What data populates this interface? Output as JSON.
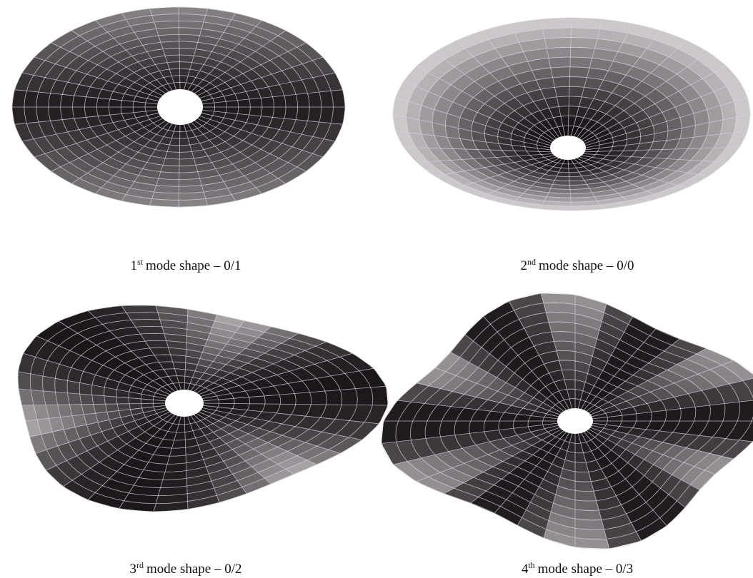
{
  "panels": [
    {
      "caption": {
        "number": "1",
        "suffix": "st",
        "text": "mode shape – 0/1"
      }
    },
    {
      "caption": {
        "number": "2",
        "suffix": "nd",
        "text": "mode shape – 0/0"
      }
    },
    {
      "caption": {
        "number": "3",
        "suffix": "rd",
        "text": "mode shape – 0/2"
      }
    },
    {
      "caption": {
        "number": "4",
        "suffix": "th",
        "text": "mode shape – 0/3"
      }
    }
  ]
}
